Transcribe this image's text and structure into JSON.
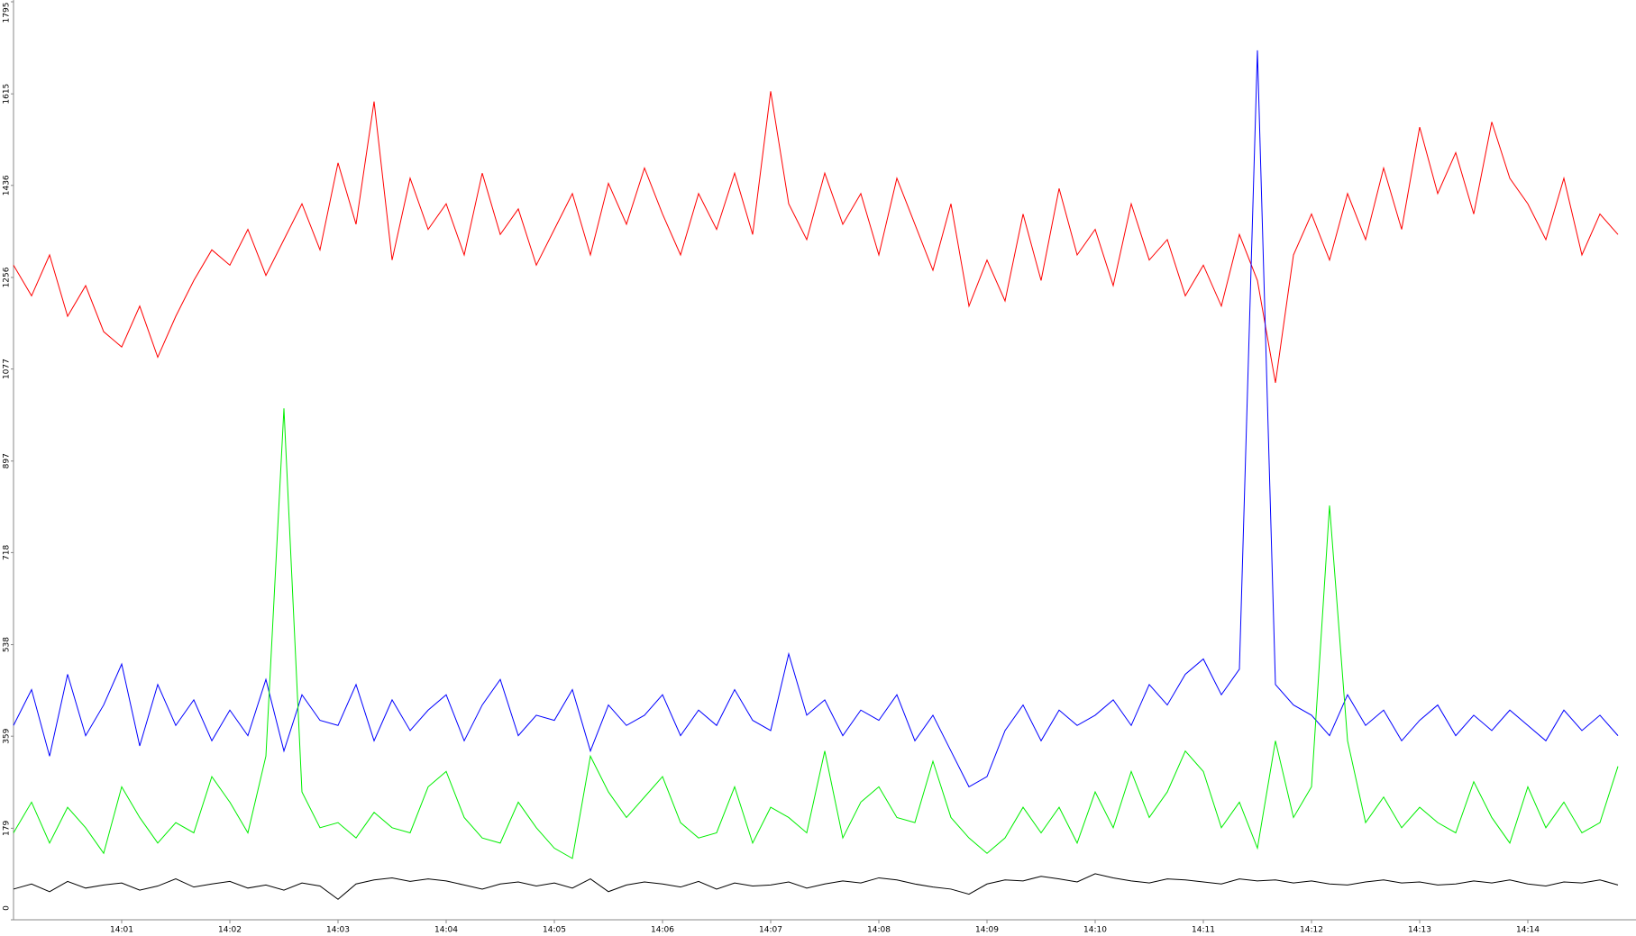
{
  "chart_data": {
    "type": "line",
    "categories": [
      null,
      null,
      null,
      null,
      null,
      null,
      "14:01",
      null,
      null,
      null,
      null,
      null,
      "14:02",
      null,
      null,
      null,
      null,
      null,
      "14:03",
      null,
      null,
      null,
      null,
      null,
      "14:04",
      null,
      null,
      null,
      null,
      null,
      "14:05",
      null,
      null,
      null,
      null,
      null,
      "14:06",
      null,
      null,
      null,
      null,
      null,
      "14:07",
      null,
      null,
      null,
      null,
      null,
      "14:08",
      null,
      null,
      null,
      null,
      null,
      "14:09",
      null,
      null,
      null,
      null,
      null,
      "14:10",
      null,
      null,
      null,
      null,
      null,
      "14:11",
      null,
      null,
      null,
      null,
      null,
      "14:12",
      null,
      null,
      null,
      null,
      null,
      "14:13",
      null,
      null,
      null,
      null,
      null,
      "14:14",
      null,
      null,
      null,
      null,
      null
    ],
    "ylim": [
      0,
      1795
    ],
    "yticks": [
      0,
      179,
      359,
      538,
      718,
      897,
      1077,
      1256,
      1436,
      1615,
      1795
    ],
    "series": [
      {
        "color": "#ff0000",
        "values": [
          1280,
          1220,
          1300,
          1180,
          1240,
          1150,
          1120,
          1200,
          1100,
          1180,
          1250,
          1310,
          1280,
          1350,
          1260,
          1330,
          1400,
          1310,
          1480,
          1360,
          1600,
          1290,
          1450,
          1350,
          1400,
          1300,
          1460,
          1340,
          1390,
          1280,
          1350,
          1420,
          1300,
          1440,
          1360,
          1470,
          1380,
          1300,
          1420,
          1350,
          1460,
          1340,
          1620,
          1400,
          1330,
          1460,
          1360,
          1420,
          1300,
          1450,
          1360,
          1270,
          1400,
          1200,
          1290,
          1210,
          1380,
          1250,
          1430,
          1300,
          1350,
          1240,
          1400,
          1290,
          1330,
          1220,
          1280,
          1200,
          1340,
          1250,
          1050,
          1300,
          1380,
          1290,
          1420,
          1330,
          1470,
          1350,
          1550,
          1420,
          1500,
          1380,
          1560,
          1450,
          1400,
          1330,
          1450,
          1300,
          1380,
          1340
        ]
      },
      {
        "color": "#0000ff",
        "values": [
          380,
          450,
          320,
          480,
          360,
          420,
          500,
          340,
          460,
          380,
          430,
          350,
          410,
          360,
          470,
          330,
          440,
          390,
          380,
          460,
          350,
          430,
          370,
          410,
          440,
          350,
          420,
          470,
          360,
          400,
          390,
          450,
          330,
          420,
          380,
          400,
          440,
          360,
          410,
          380,
          450,
          390,
          370,
          520,
          400,
          430,
          360,
          410,
          390,
          440,
          350,
          400,
          330,
          260,
          280,
          370,
          420,
          350,
          410,
          380,
          400,
          430,
          380,
          460,
          420,
          480,
          510,
          440,
          490,
          1700,
          460,
          420,
          400,
          360,
          440,
          380,
          410,
          350,
          390,
          420,
          360,
          400,
          370,
          410,
          380,
          350,
          410,
          370,
          400,
          360
        ]
      },
      {
        "color": "#00ee00",
        "values": [
          170,
          230,
          150,
          220,
          180,
          130,
          260,
          200,
          150,
          190,
          170,
          280,
          230,
          170,
          320,
          1000,
          250,
          180,
          190,
          160,
          210,
          180,
          170,
          260,
          290,
          200,
          160,
          150,
          230,
          180,
          140,
          120,
          320,
          250,
          200,
          240,
          280,
          190,
          160,
          170,
          260,
          150,
          220,
          200,
          170,
          330,
          160,
          230,
          260,
          200,
          190,
          310,
          200,
          160,
          130,
          160,
          220,
          170,
          220,
          150,
          250,
          180,
          290,
          200,
          250,
          330,
          290,
          180,
          230,
          140,
          350,
          200,
          260,
          810,
          350,
          190,
          240,
          180,
          220,
          190,
          170,
          270,
          200,
          150,
          260,
          180,
          230,
          170,
          190,
          300
        ]
      },
      {
        "color": "#000000",
        "values": [
          60,
          70,
          55,
          75,
          62,
          68,
          72,
          58,
          66,
          80,
          64,
          70,
          75,
          62,
          68,
          58,
          72,
          66,
          40,
          70,
          78,
          82,
          75,
          80,
          76,
          68,
          60,
          70,
          74,
          66,
          72,
          62,
          80,
          55,
          68,
          74,
          70,
          64,
          75,
          60,
          72,
          66,
          68,
          74,
          62,
          70,
          76,
          72,
          82,
          78,
          70,
          64,
          60,
          50,
          70,
          78,
          76,
          85,
          80,
          74,
          90,
          82,
          76,
          72,
          80,
          78,
          74,
          70,
          80,
          76,
          78,
          72,
          76,
          70,
          68,
          74,
          78,
          72,
          74,
          68,
          70,
          76,
          72,
          78,
          70,
          66,
          74,
          72,
          78,
          68
        ]
      }
    ]
  }
}
